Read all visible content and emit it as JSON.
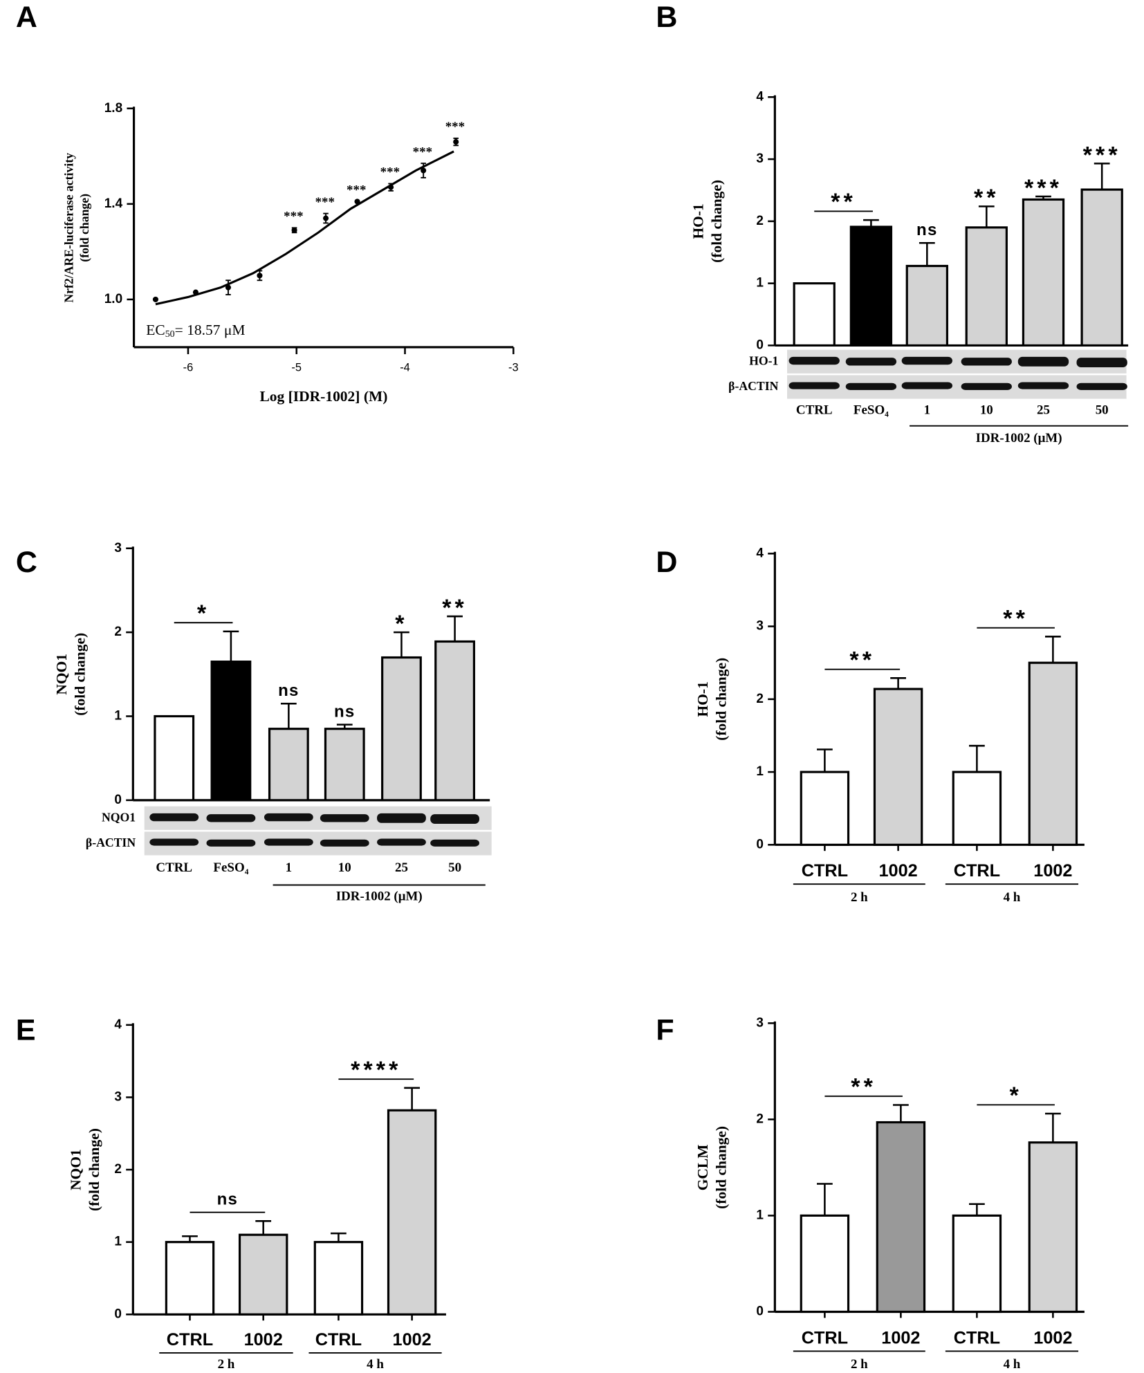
{
  "chart_data": [
    {
      "type": "scatter",
      "panel": "A",
      "xlabel": "Log [IDR-1002] (M)",
      "ylabel": [
        "Nrf2/ARE-luciferase activity",
        "(fold change)"
      ],
      "x": [
        -6.3,
        -5.93,
        -5.63,
        -5.34,
        -5.02,
        -4.73,
        -4.44,
        -4.13,
        -3.83,
        -3.53
      ],
      "values": [
        1.0,
        1.03,
        1.05,
        1.1,
        1.29,
        1.34,
        1.41,
        1.47,
        1.54,
        1.66
      ],
      "errors": [
        null,
        null,
        0.03,
        0.02,
        0.01,
        0.02,
        null,
        0.015,
        0.03,
        0.015
      ],
      "annotations": [
        null,
        null,
        null,
        null,
        "***",
        "***",
        "***",
        "***",
        "***",
        "***"
      ],
      "curve": {
        "x": [
          -6.3,
          -6.0,
          -5.7,
          -5.4,
          -5.1,
          -4.8,
          -4.5,
          -4.2,
          -3.9,
          -3.55
        ],
        "values": [
          0.98,
          1.01,
          1.05,
          1.11,
          1.19,
          1.28,
          1.38,
          1.46,
          1.54,
          1.62
        ]
      },
      "ec50": {
        "prefix": "EC",
        "sub": "50",
        "suffix": "= 18.57 μM"
      },
      "xlim": [
        -6.5,
        -3
      ],
      "xticks": [
        -6,
        -5,
        -4,
        -3
      ],
      "ylim": [
        0.8,
        1.8
      ],
      "yticks": [
        {
          "value": 1,
          "label": "1.0"
        },
        1.4,
        1.8
      ]
    },
    {
      "type": "bar",
      "panel": "B",
      "ylabel": [
        "HO-1",
        "(fold change)"
      ],
      "categories": [
        "CTRL",
        "FeSO₄",
        "1",
        "10",
        "25",
        "50"
      ],
      "values": [
        1,
        1.91,
        1.28,
        1.9,
        2.35,
        2.51
      ],
      "errors": [
        null,
        0.11,
        0.37,
        0.34,
        0.05,
        0.42
      ],
      "colors": [
        "#ffffff",
        "#000000",
        "#d3d3d3",
        "#d3d3d3",
        "#d3d3d3",
        "#d3d3d3"
      ],
      "significance": [
        null,
        "**",
        "ns",
        "**",
        "***",
        "***"
      ],
      "blot_labels": [
        "HO-1",
        "β-ACTIN"
      ],
      "group_labels": [
        "IDR-1002 (μM)"
      ],
      "ylim": [
        0,
        4
      ],
      "yticks": [
        0,
        1,
        2,
        3,
        4
      ]
    },
    {
      "type": "bar",
      "panel": "C",
      "ylabel": [
        "NQO1",
        "(fold change)"
      ],
      "categories": [
        "CTRL",
        "FeSO₄",
        "1",
        "10",
        "25",
        "50"
      ],
      "values": [
        1,
        1.65,
        0.85,
        0.85,
        1.7,
        1.89
      ],
      "errors": [
        null,
        0.36,
        0.3,
        0.05,
        0.3,
        0.3
      ],
      "colors": [
        "#ffffff",
        "#000000",
        "#d3d3d3",
        "#d3d3d3",
        "#d3d3d3",
        "#d3d3d3"
      ],
      "significance": [
        null,
        "*",
        "ns",
        "ns",
        "*",
        "**"
      ],
      "blot_labels": [
        "NQO1",
        "β-ACTIN"
      ],
      "group_labels": [
        "IDR-1002 (μM)"
      ],
      "ylim": [
        0,
        3
      ],
      "yticks": [
        0,
        1,
        2,
        3
      ]
    },
    {
      "type": "bar",
      "panel": "D",
      "ylabel": [
        "HO-1",
        "(fold change)"
      ],
      "categories": [
        "CTRL",
        "1002",
        "CTRL",
        "1002"
      ],
      "values": [
        1,
        2.14,
        1,
        2.5
      ],
      "errors": [
        0.31,
        0.15,
        0.36,
        0.36
      ],
      "colors": [
        "#ffffff",
        "#d3d3d3",
        "#ffffff",
        "#d3d3d3"
      ],
      "significance": [
        null,
        "**",
        null,
        "**"
      ],
      "group_labels": [
        "2 h",
        "4 h"
      ],
      "ylim": [
        0,
        4
      ],
      "yticks": [
        0,
        1,
        2,
        3,
        4
      ]
    },
    {
      "type": "bar",
      "panel": "E",
      "ylabel": [
        "NQO1",
        "(fold change)"
      ],
      "categories": [
        "CTRL",
        "1002",
        "CTRL",
        "1002"
      ],
      "values": [
        1,
        1.1,
        1,
        2.82
      ],
      "errors": [
        0.08,
        0.19,
        0.12,
        0.31
      ],
      "colors": [
        "#ffffff",
        "#d3d3d3",
        "#ffffff",
        "#d3d3d3"
      ],
      "significance": [
        null,
        "ns",
        null,
        "****"
      ],
      "group_labels": [
        "2 h",
        "4 h"
      ],
      "ylim": [
        0,
        4
      ],
      "yticks": [
        0,
        1,
        2,
        3,
        4
      ]
    },
    {
      "type": "bar",
      "panel": "F",
      "ylabel": [
        "GCLM",
        "(fold change)"
      ],
      "categories": [
        "CTRL",
        "1002",
        "CTRL",
        "1002"
      ],
      "values": [
        1,
        1.97,
        1,
        1.76
      ],
      "errors": [
        0.33,
        0.18,
        0.12,
        0.3
      ],
      "colors": [
        "#ffffff",
        "#999999",
        "#ffffff",
        "#d3d3d3"
      ],
      "significance": [
        null,
        "**",
        null,
        "*"
      ],
      "group_labels": [
        "2 h",
        "4 h"
      ],
      "ylim": [
        0,
        3
      ],
      "yticks": [
        0,
        1,
        2,
        3
      ]
    }
  ]
}
